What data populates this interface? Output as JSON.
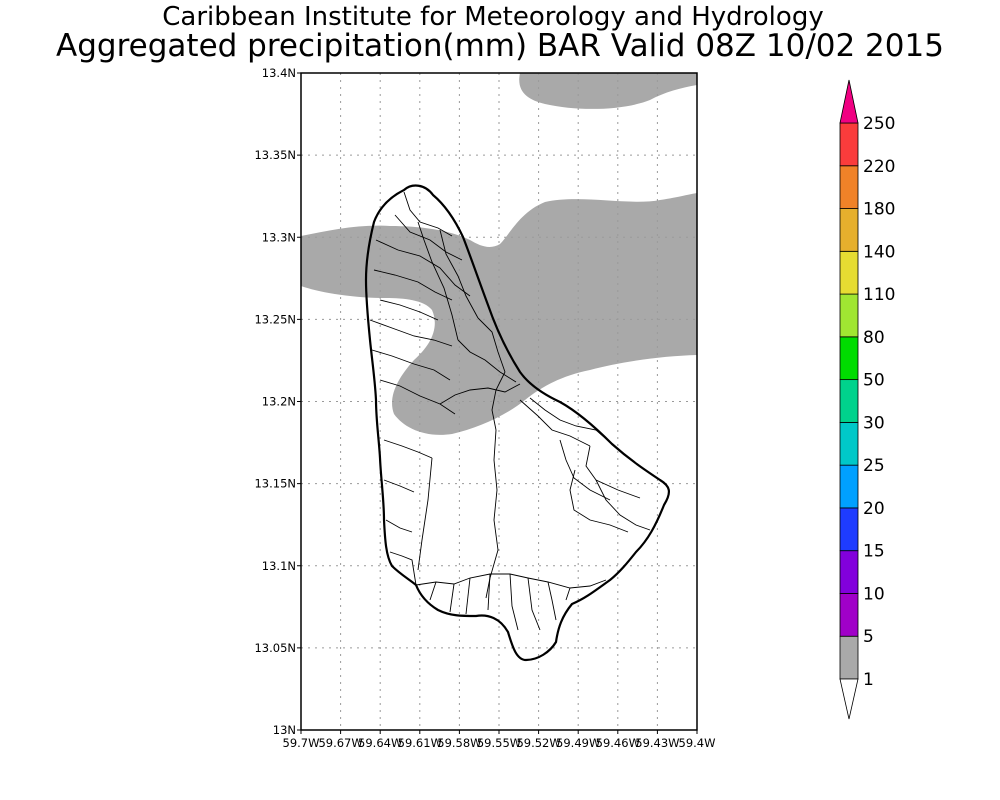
{
  "header": {
    "institution": "Caribbean Institute for Meteorology and Hydrology",
    "product": "Aggregated precipitation(mm) BAR Valid 08Z 10/02 2015"
  },
  "map": {
    "lat_ticks": [
      "13.4N",
      "13.35N",
      "13.3N",
      "13.25N",
      "13.2N",
      "13.15N",
      "13.1N",
      "13.05N",
      "13N"
    ],
    "lon_ticks": [
      "59.7W",
      "59.67W",
      "59.64W",
      "59.61W",
      "59.58W",
      "59.55W",
      "59.52W",
      "59.49W",
      "59.46W",
      "59.43W",
      "59.4W"
    ],
    "lat_range": [
      13.0,
      13.4
    ],
    "lon_range": [
      -59.7,
      -59.4
    ],
    "gridlines": true,
    "precip_fill_color": "#a9a9a9",
    "precip_fill_class": "1-5 mm"
  },
  "colorbar": {
    "levels": [
      "1",
      "5",
      "10",
      "15",
      "20",
      "25",
      "30",
      "50",
      "80",
      "110",
      "140",
      "180",
      "220",
      "250"
    ],
    "colors": [
      "#a9a9a9",
      "#a000c8",
      "#8200dc",
      "#1e3cff",
      "#00a0ff",
      "#00c8c8",
      "#00d28c",
      "#00dc00",
      "#a0e632",
      "#e6dc32",
      "#e6af2d",
      "#f08228",
      "#fa3c3c",
      "#f00082"
    ],
    "below_color": "#ffffff",
    "orientation": "vertical",
    "placement": "right"
  }
}
